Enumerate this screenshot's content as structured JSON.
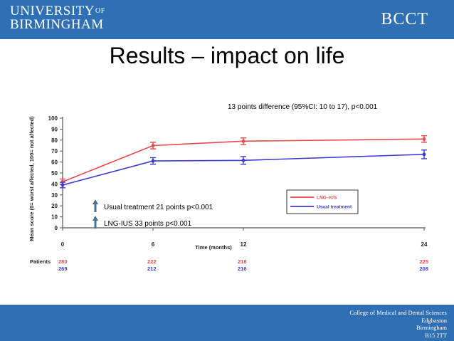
{
  "header": {
    "university_line1": "UNIVERSITY",
    "university_of": "OF",
    "university_line2": "BIRMINGHAM",
    "unit": "BCCT"
  },
  "slide": {
    "title": "Results – impact on life"
  },
  "footer": {
    "lines": [
      "College of Medical and Dental Sciences",
      "Edgbaston",
      "Birmingham",
      "B15 2TT"
    ]
  },
  "annotations": {
    "difference": "13 points difference (95%CI: 10 to 17), p<0.001",
    "usual_change": "Usual treatment 21 points p<0.001",
    "lng_change": "LNG-IUS 33 points p<0.001"
  },
  "colors": {
    "brand_blue": "#2f6fb3",
    "lng": "#e8474c",
    "usual": "#3b3bd1",
    "up_arrow": "#4a6f8f"
  },
  "chart_data": {
    "type": "line",
    "xlabel": "Time (months)",
    "ylabel": "Mean score (0= worst affected, 100= not affected)",
    "x": [
      0,
      6,
      12,
      24
    ],
    "x_ticks": [
      "0",
      "6",
      "12",
      "24"
    ],
    "y_ticks": [
      0,
      10,
      20,
      30,
      40,
      50,
      60,
      70,
      80,
      90,
      100
    ],
    "ylim": [
      0,
      100
    ],
    "xlim": [
      0,
      24
    ],
    "legend_position": "lower-right",
    "series": [
      {
        "name": "LNG–IUS",
        "color": "#e8474c",
        "values": [
          42,
          75,
          79,
          81
        ],
        "ci_half": [
          2.5,
          3,
          3,
          3
        ],
        "patients": [
          "280",
          "222",
          "218",
          "225"
        ]
      },
      {
        "name": "Usual treatment",
        "color": "#3b3bd1",
        "values": [
          39,
          61,
          61.5,
          67
        ],
        "ci_half": [
          2.5,
          3,
          3.5,
          4
        ],
        "patients": [
          "269",
          "212",
          "216",
          "208"
        ]
      }
    ],
    "patients_label": "Patients"
  }
}
